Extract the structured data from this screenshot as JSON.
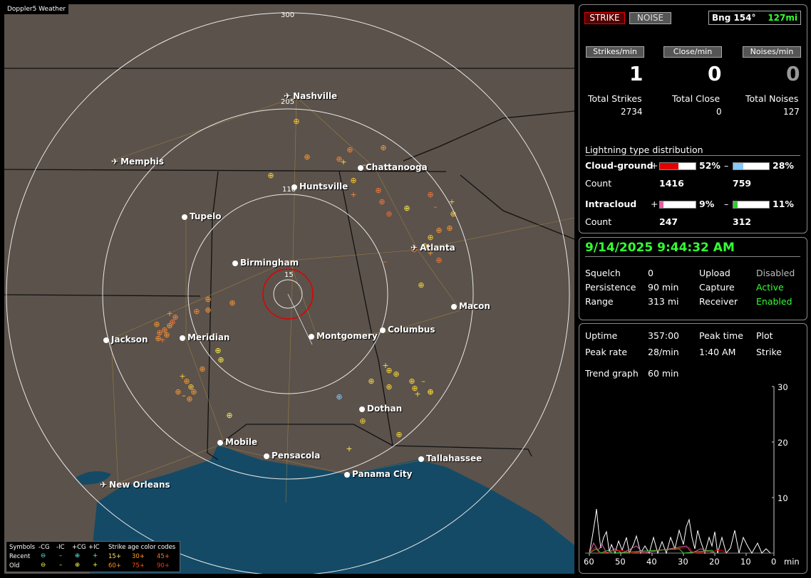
{
  "app": {
    "name": "Doppler5 Weather"
  },
  "map": {
    "rings": [
      "300",
      "205",
      "110",
      "15"
    ],
    "cities": [
      {
        "name": "Nashville",
        "airport": true
      },
      {
        "name": "Memphis",
        "airport": true
      },
      {
        "name": "Chattanooga",
        "airport": false
      },
      {
        "name": "Huntsville",
        "airport": false
      },
      {
        "name": "Tupelo",
        "airport": false
      },
      {
        "name": "Atlanta",
        "airport": true
      },
      {
        "name": "Birmingham",
        "airport": false
      },
      {
        "name": "Macon",
        "airport": false
      },
      {
        "name": "Jackson",
        "airport": false
      },
      {
        "name": "Meridian",
        "airport": false
      },
      {
        "name": "Montgomery",
        "airport": false
      },
      {
        "name": "Columbus",
        "airport": false
      },
      {
        "name": "Dothan",
        "airport": false
      },
      {
        "name": "Mobile",
        "airport": false
      },
      {
        "name": "Pensacola",
        "airport": false
      },
      {
        "name": "Tallahassee",
        "airport": false
      },
      {
        "name": "Panama City",
        "airport": false
      },
      {
        "name": "New Orleans",
        "airport": true
      }
    ],
    "legend": {
      "symbols_label": "Symbols",
      "cols": [
        "-CG",
        "-IC",
        "+CG",
        "+IC"
      ],
      "recent": "Recent",
      "old": "Old",
      "codes_label": "Strike age color codes",
      "recent_codes": [
        "15+",
        "30+",
        "45+"
      ],
      "old_codes": [
        "60+",
        "75+",
        "90+"
      ]
    }
  },
  "top": {
    "strike": "STRIKE",
    "noise": "NOISE",
    "bearing": "Bng 154°",
    "distance": "127mi"
  },
  "stats": {
    "strikes_min_label": "Strikes/min",
    "close_min_label": "Close/min",
    "noises_min_label": "Noises/min",
    "strikes_min": "1",
    "close_min": "0",
    "noises_min": "0",
    "total_strikes_label": "Total Strikes",
    "total_close_label": "Total Close",
    "total_noises_label": "Total Noises",
    "total_strikes": "2734",
    "total_close": "0",
    "total_noises": "127"
  },
  "distribution": {
    "title": "Lightning type distribution",
    "cg_label": "Cloud-ground",
    "ic_label": "Intracloud",
    "count_label": "Count",
    "plus": "+",
    "minus": "–",
    "cg_pos_pct": "52%",
    "cg_neg_pct": "28%",
    "cg_pos_count": "1416",
    "cg_neg_count": "759",
    "ic_pos_pct": "9%",
    "ic_neg_pct": "11%",
    "ic_pos_count": "247",
    "ic_neg_count": "312",
    "cg_pos_frac": 0.52,
    "cg_neg_frac": 0.28,
    "ic_pos_frac": 0.09,
    "ic_neg_frac": 0.11
  },
  "status": {
    "datetime": "9/14/2025 9:44:32 AM",
    "squelch_label": "Squelch",
    "squelch": "0",
    "persistence_label": "Persistence",
    "persistence": "90 min",
    "range_label": "Range",
    "range": "313 mi",
    "upload_label": "Upload",
    "upload": "Disabled",
    "capture_label": "Capture",
    "capture": "Active",
    "receiver_label": "Receiver",
    "receiver": "Enabled"
  },
  "trend": {
    "uptime_label": "Uptime",
    "uptime": "357:00",
    "peak_time_label": "Peak time",
    "peak_time": "1:40 AM",
    "plot_label": "Plot",
    "plot": "Strike",
    "peak_rate_label": "Peak rate",
    "peak_rate": "28/min",
    "trend_label": "Trend graph",
    "trend_value": "60 min",
    "y_ticks": [
      "30",
      "20",
      "10"
    ],
    "x_ticks": [
      "60",
      "50",
      "40",
      "30",
      "20",
      "10",
      "0"
    ],
    "x_unit": "min"
  },
  "colors": {
    "green": "#33ff33",
    "red": "#e00000",
    "blue": "#88c8ff",
    "pink": "#e060a0"
  }
}
